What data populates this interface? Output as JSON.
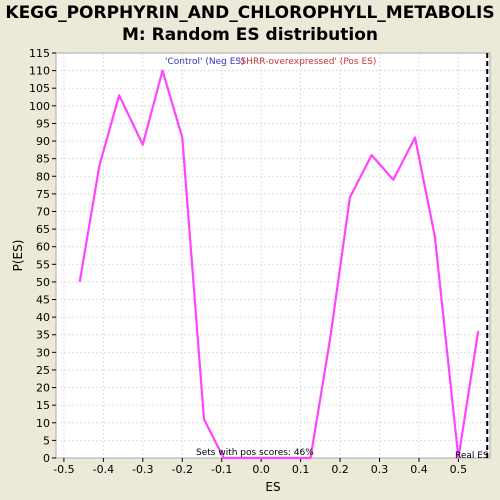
{
  "title": {
    "line1": "KEGG_PORPHYRIN_AND_CHLOROPHYLL_METABOLIS",
    "line2": "M: Random ES distribution"
  },
  "colors": {
    "background": "#ece9d8",
    "plot_bg": "#ffffff",
    "line": "#ff44ff",
    "neg_label": "#3333cc",
    "pos_label": "#cc3333",
    "grid": "#dddddd",
    "real_es_line": "#000000"
  },
  "chart_data": {
    "type": "line",
    "title": "KEGG_PORPHYRIN_AND_CHLOROPHYLL_METABOLISM: Random ES distribution",
    "xlabel": "ES",
    "ylabel": "P(ES)",
    "xlim": [
      -0.52,
      0.58
    ],
    "ylim": [
      0,
      115
    ],
    "x_ticks": [
      -0.5,
      -0.4,
      -0.3,
      -0.2,
      -0.1,
      0.0,
      0.1,
      0.2,
      0.3,
      0.4,
      0.5
    ],
    "x_tick_labels": [
      "-0.5",
      "-0.4",
      "-0.3",
      "-0.2",
      "-0.1",
      "0.0",
      "0.1",
      "0.2",
      "0.3",
      "0.4",
      "0.5"
    ],
    "y_ticks": [
      0,
      5,
      10,
      15,
      20,
      25,
      30,
      35,
      40,
      45,
      50,
      55,
      60,
      65,
      70,
      75,
      80,
      85,
      90,
      95,
      100,
      105,
      110,
      115
    ],
    "grid": true,
    "series": [
      {
        "x": [
          -0.46,
          -0.41,
          -0.36,
          -0.3,
          -0.25,
          -0.2,
          -0.145,
          -0.095,
          0.0,
          0.125,
          0.175,
          0.225,
          0.28,
          0.335,
          0.39,
          0.44,
          0.5,
          0.55
        ],
        "y": [
          50,
          83,
          103,
          89,
          110,
          91,
          11,
          0,
          0,
          0,
          34,
          74,
          86,
          79,
          91,
          63,
          0,
          36
        ]
      }
    ],
    "annotations": {
      "neg_label": "'Control' (Neg ES)",
      "pos_label": "'SHRR-overexpressed' (Pos ES)",
      "pos_scores": "Sets with pos scores: 46%",
      "real_es_label": "Real ES"
    },
    "real_es": 0.573
  }
}
